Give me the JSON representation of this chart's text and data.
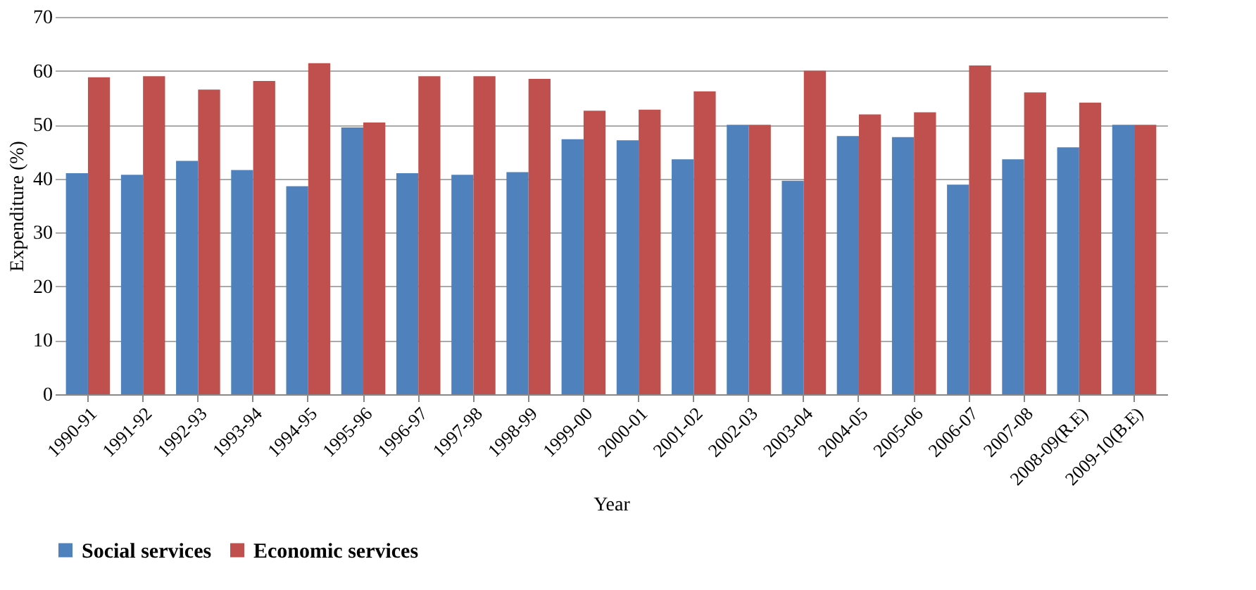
{
  "chart_data": {
    "type": "bar",
    "xlabel": "Year",
    "ylabel": "Expenditure (%)",
    "categories": [
      "1990-91",
      "1991-92",
      "1992-93",
      "1993-94",
      "1994-95",
      "1995-96",
      "1996-97",
      "1997-98",
      "1998-99",
      "1999-00",
      "2000-01",
      "2001-02",
      "2002-03",
      "2003-04",
      "2004-05",
      "2005-06",
      "2006-07",
      "2007-08",
      "2008-09(R.E)",
      "2009-10(B.E)"
    ],
    "series": [
      {
        "name": "Social services",
        "color": "#4f81bd",
        "values": [
          41,
          40.7,
          43.3,
          41.6,
          38.6,
          49.5,
          41,
          40.7,
          41.2,
          47.3,
          47.1,
          43.6,
          50,
          39.6,
          47.9,
          47.7,
          38.9,
          43.6,
          45.8,
          50
        ]
      },
      {
        "name": "Economic services",
        "color": "#c0504d",
        "values": [
          58.8,
          59,
          56.5,
          58.1,
          61.4,
          50.4,
          59,
          59,
          58.5,
          52.6,
          52.8,
          56.2,
          50,
          60,
          51.9,
          52.3,
          61,
          56,
          54.1,
          50
        ]
      }
    ],
    "ylim": [
      0,
      70
    ],
    "yticks": [
      0,
      10,
      20,
      30,
      40,
      50,
      60,
      70
    ],
    "grid": "y",
    "legend": "bottom"
  }
}
